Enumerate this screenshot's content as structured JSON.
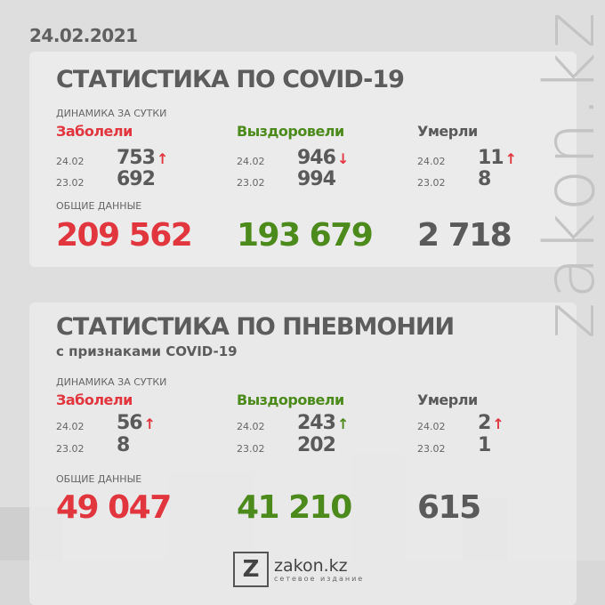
{
  "date": "24.02.2021",
  "watermark": "zakon.kz",
  "colors": {
    "red": "#e2363f",
    "green": "#4b8a1b",
    "gray": "#5a5a5a"
  },
  "covid": {
    "title": "СТАТИСТИКА ПО COVID-19",
    "dynamics_label": "ДИНАМИКА ЗА СУТКИ",
    "total_label": "ОБЩИЕ ДАННЫЕ",
    "columns": [
      {
        "label": "Заболели",
        "d1": "24.02",
        "v1": "753",
        "trend": "up",
        "d2": "23.02",
        "v2": "692",
        "total": "209 562"
      },
      {
        "label": "Выздоровели",
        "d1": "24.02",
        "v1": "946",
        "trend": "down",
        "d2": "23.02",
        "v2": "994",
        "total": "193 679"
      },
      {
        "label": "Умерли",
        "d1": "24.02",
        "v1": "11",
        "trend": "up",
        "d2": "23.02",
        "v2": "8",
        "total": "2 718"
      }
    ]
  },
  "pneumonia": {
    "title": "СТАТИСТИКА ПО ПНЕВМОНИИ",
    "subtitle": "с признаками COVID-19",
    "dynamics_label": "ДИНАМИКА ЗА СУТКИ",
    "total_label": "ОБЩИЕ ДАННЫЕ",
    "columns": [
      {
        "label": "Заболели",
        "d1": "24.02",
        "v1": "56",
        "trend": "up",
        "d2": "23.02",
        "v2": "8",
        "total": "49 047"
      },
      {
        "label": "Выздоровели",
        "d1": "24.02",
        "v1": "243",
        "trend": "up",
        "d2": "23.02",
        "v2": "202",
        "total": "41 210"
      },
      {
        "label": "Умерли",
        "d1": "24.02",
        "v1": "2",
        "trend": "up",
        "d2": "23.02",
        "v2": "1",
        "total": "615"
      }
    ]
  },
  "logo": {
    "letter": "Z",
    "name": "zakon.kz",
    "tagline": "сетевое издание"
  }
}
